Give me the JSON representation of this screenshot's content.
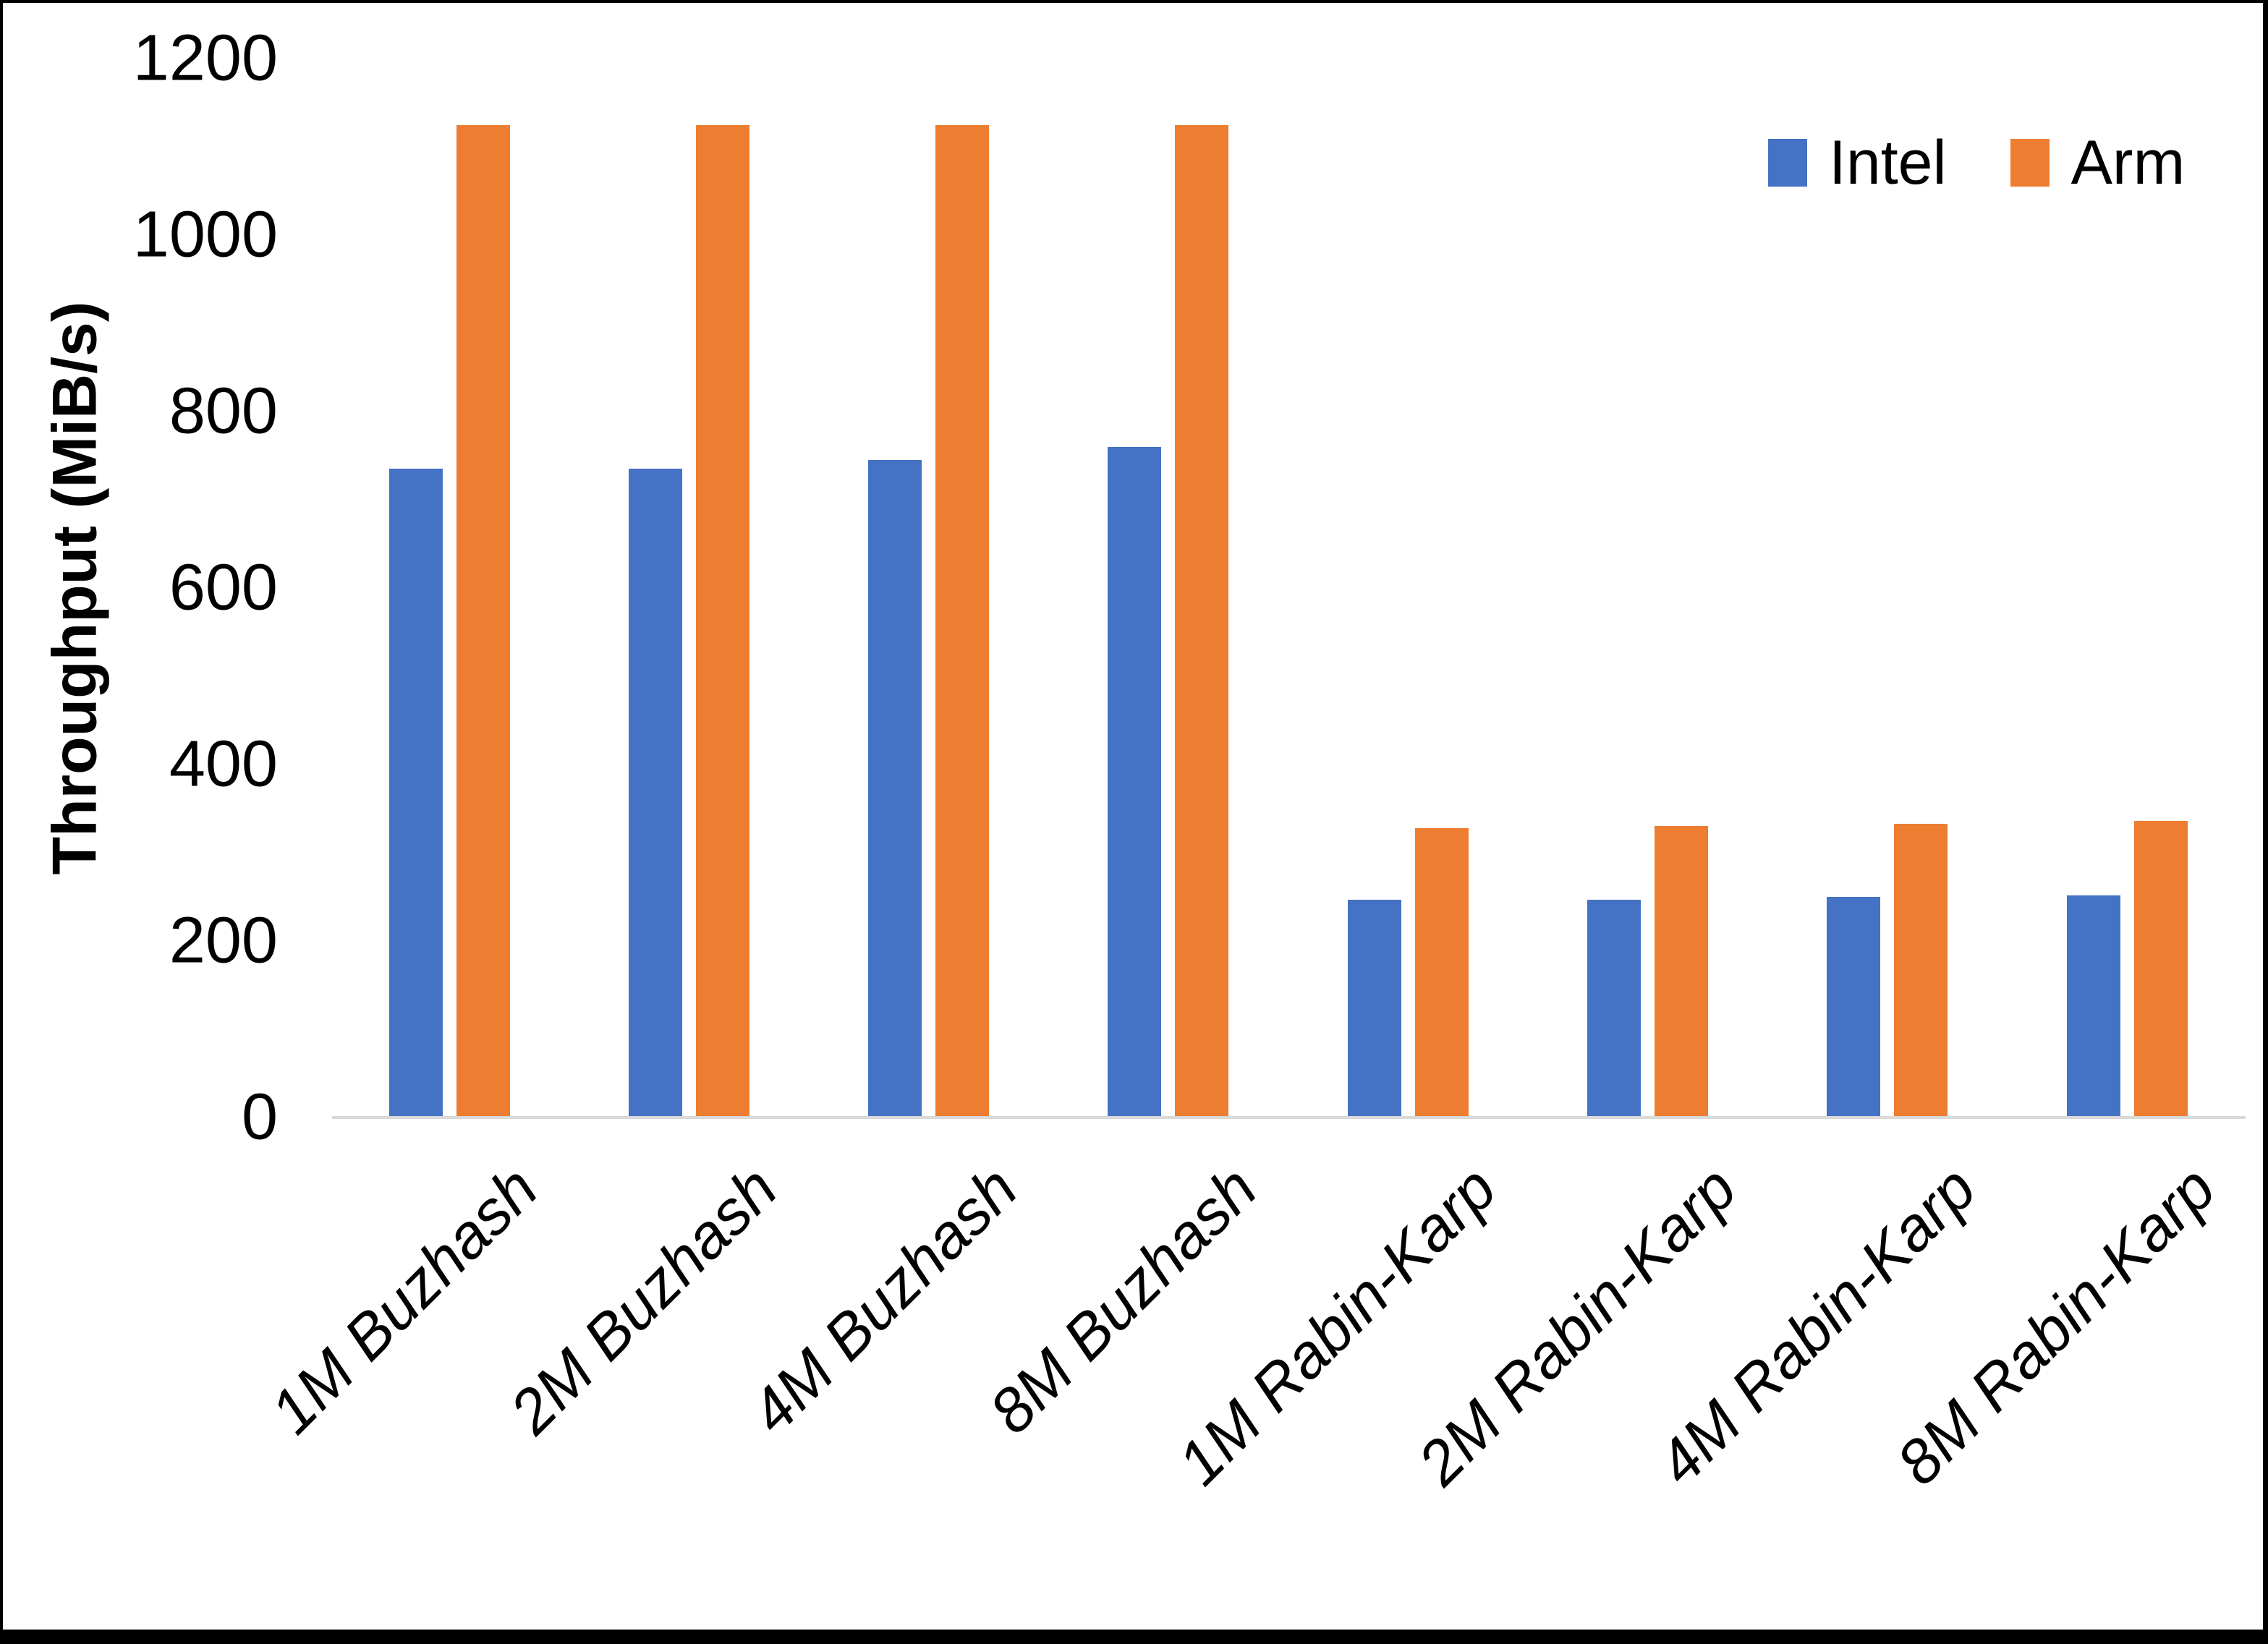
{
  "chart_data": {
    "type": "bar",
    "title": "",
    "ylabel": "Throughput (MiB/s)",
    "xlabel": "",
    "ylim": [
      0,
      1200
    ],
    "yticks": [
      0,
      200,
      400,
      600,
      800,
      1000,
      1200
    ],
    "grid": false,
    "legend_position": "top-right",
    "categories": [
      "1M Buzhash",
      "2M Buzhash",
      "4M Buzhash",
      "8M Buzhash",
      "1M Rabin-Karp",
      "2M Rabin-Karp",
      "4M Rabin-Karp",
      "8M Rabin-Karp"
    ],
    "series": [
      {
        "name": "Intel",
        "color": "#4472C4",
        "values": [
          735,
          735,
          745,
          760,
          247,
          247,
          250,
          252
        ]
      },
      {
        "name": "Arm",
        "color": "#ED7D31",
        "values": [
          1125,
          1125,
          1125,
          1125,
          328,
          330,
          333,
          336
        ]
      }
    ]
  },
  "colors": {
    "intel_blue": "#4472C4",
    "arm_orange": "#ED7D31",
    "axis_line": "#D9D9D9",
    "text": "#000000",
    "background": "#FFFFFF",
    "border": "#000000"
  }
}
